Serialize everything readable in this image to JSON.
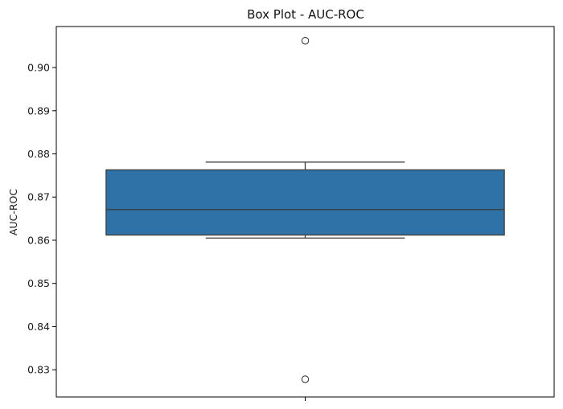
{
  "chart_data": {
    "type": "box",
    "title": "Box Plot - AUC-ROC",
    "xlabel": "",
    "ylabel": "AUC-ROC",
    "ylim": [
      0.8237,
      0.9095
    ],
    "yticks": [
      0.83,
      0.84,
      0.85,
      0.86,
      0.87,
      0.88,
      0.89,
      0.9
    ],
    "ytick_labels": [
      "0.83",
      "0.84",
      "0.85",
      "0.86",
      "0.87",
      "0.88",
      "0.89",
      "0.90"
    ],
    "grid": false,
    "series": [
      {
        "q1": 0.8612,
        "median": 0.8671,
        "q3": 0.8763,
        "whisker_low": 0.8605,
        "whisker_high": 0.8781,
        "outliers": [
          0.9062,
          0.8278
        ]
      }
    ],
    "colors": {
      "box_fill": "#2e72a8",
      "box_edge": "#3d3d3d",
      "axis": "#000000"
    }
  }
}
